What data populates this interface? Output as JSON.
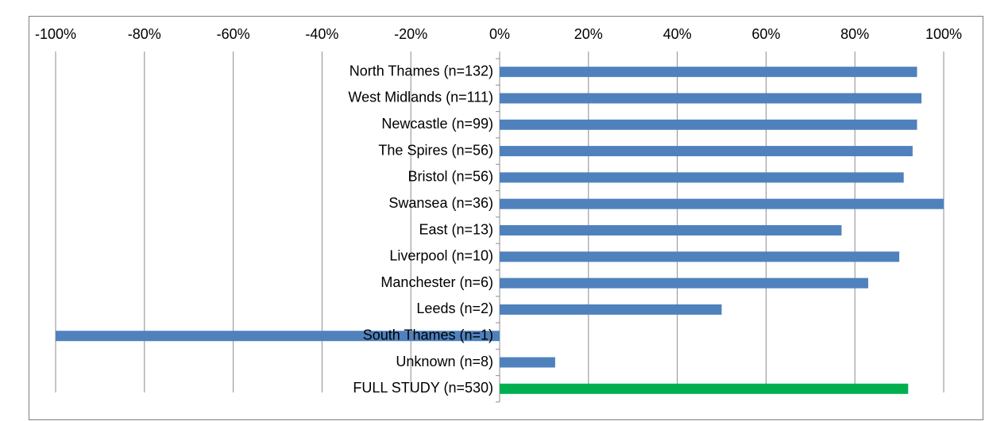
{
  "chart_data": {
    "type": "barh",
    "categories": [
      "North Thames (n=132)",
      "West Midlands (n=111)",
      "Newcastle (n=99)",
      "The Spires (n=56)",
      "Bristol (n=56)",
      "Swansea (n=36)",
      "East (n=13)",
      "Liverpool (n=10)",
      "Manchester (n=6)",
      "Leeds (n=2)",
      "South Thames (n=1)",
      "Unknown (n=8)",
      "FULL STUDY (n=530)"
    ],
    "values": [
      94,
      95,
      94,
      93,
      91,
      100,
      77,
      90,
      83,
      50,
      -100,
      12.5,
      92
    ],
    "colors": [
      "#4f81bd",
      "#4f81bd",
      "#4f81bd",
      "#4f81bd",
      "#4f81bd",
      "#4f81bd",
      "#4f81bd",
      "#4f81bd",
      "#4f81bd",
      "#4f81bd",
      "#4f81bd",
      "#4f81bd",
      "#00b050"
    ],
    "xlim": [
      -100,
      100
    ],
    "xticks": [
      {
        "value": -100,
        "label": "-100%"
      },
      {
        "value": -80,
        "label": "-80%"
      },
      {
        "value": -60,
        "label": "-60%"
      },
      {
        "value": -40,
        "label": "-40%"
      },
      {
        "value": -20,
        "label": "-20%"
      },
      {
        "value": 0,
        "label": "0%"
      },
      {
        "value": 20,
        "label": "20%"
      },
      {
        "value": 40,
        "label": "40%"
      },
      {
        "value": 60,
        "label": "60%"
      },
      {
        "value": 80,
        "label": "80%"
      },
      {
        "value": 100,
        "label": "100%"
      }
    ],
    "grid": true
  }
}
